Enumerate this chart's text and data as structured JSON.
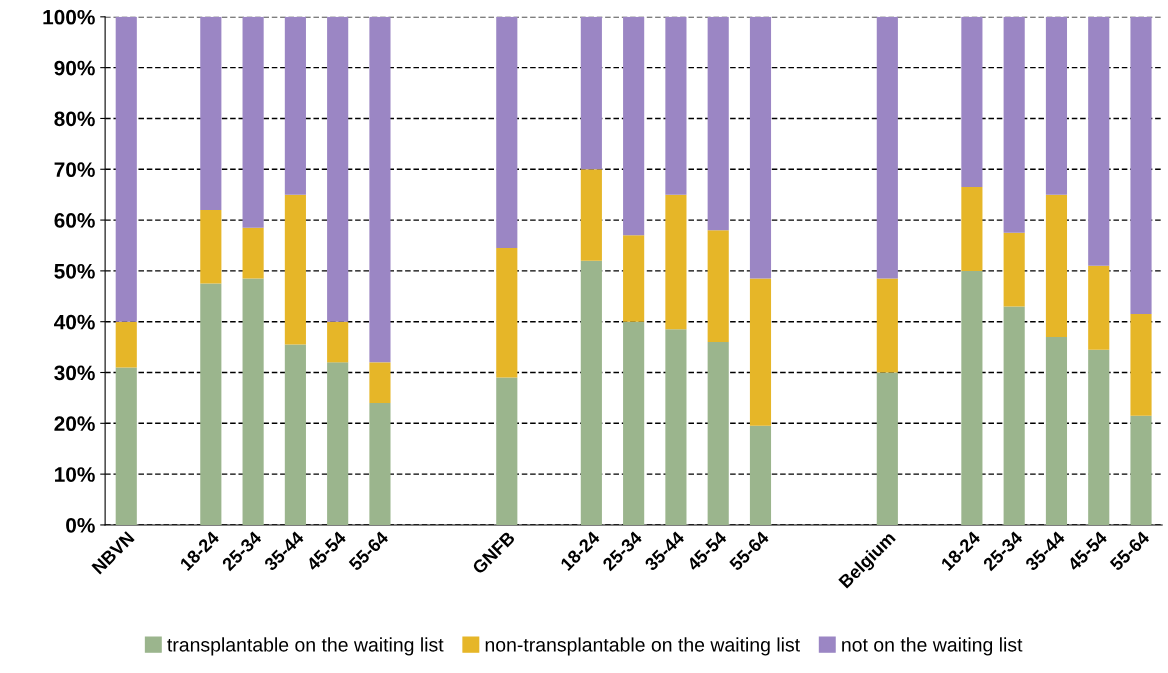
{
  "chart_data": {
    "type": "bar",
    "stacked": true,
    "categories": [
      "NBVN",
      null,
      "18-24",
      "25-34",
      "35-44",
      "45-54",
      "55-64",
      null,
      null,
      "GNFB",
      null,
      "18-24",
      "25-34",
      "35-44",
      "45-54",
      "55-64",
      null,
      null,
      "Belgium",
      null,
      "18-24",
      "25-34",
      "35-44",
      "45-54",
      "55-64"
    ],
    "series": [
      {
        "name": "transplantable on the waiting list",
        "color": "#9bb58d",
        "values": [
          31,
          null,
          47.5,
          48.5,
          35.5,
          32,
          24,
          null,
          null,
          29,
          null,
          52,
          40,
          38.5,
          36,
          19.5,
          null,
          null,
          30,
          null,
          50,
          43,
          37,
          34.5,
          21.5
        ]
      },
      {
        "name": "non-transplantable on the waiting list",
        "color": "#e6b628",
        "values": [
          9,
          null,
          14.5,
          10,
          29.5,
          8,
          8,
          null,
          null,
          25.5,
          null,
          18,
          17,
          26.5,
          22,
          29,
          null,
          null,
          18.5,
          null,
          16.5,
          14.5,
          28,
          16.5,
          20
        ]
      },
      {
        "name": "not on the waiting list",
        "color": "#9b86c4",
        "values": [
          60,
          null,
          38,
          41.5,
          35,
          60,
          68,
          null,
          null,
          45.5,
          null,
          30,
          43,
          35,
          42,
          51.5,
          null,
          null,
          51.5,
          null,
          33.5,
          42.5,
          35,
          49,
          58.5
        ]
      }
    ],
    "ylim": [
      0,
      100
    ],
    "yticks": [
      {
        "value": 0,
        "label": "0%"
      },
      {
        "value": 10,
        "label": "10%"
      },
      {
        "value": 20,
        "label": "20%"
      },
      {
        "value": 30,
        "label": "30%"
      },
      {
        "value": 40,
        "label": "40%"
      },
      {
        "value": 50,
        "label": "50%"
      },
      {
        "value": 60,
        "label": "60%"
      },
      {
        "value": 70,
        "label": "70%"
      },
      {
        "value": 80,
        "label": "80%"
      },
      {
        "value": 90,
        "label": "90%"
      },
      {
        "value": 100,
        "label": "100%"
      }
    ],
    "grid": "y",
    "legend": "bottom"
  }
}
